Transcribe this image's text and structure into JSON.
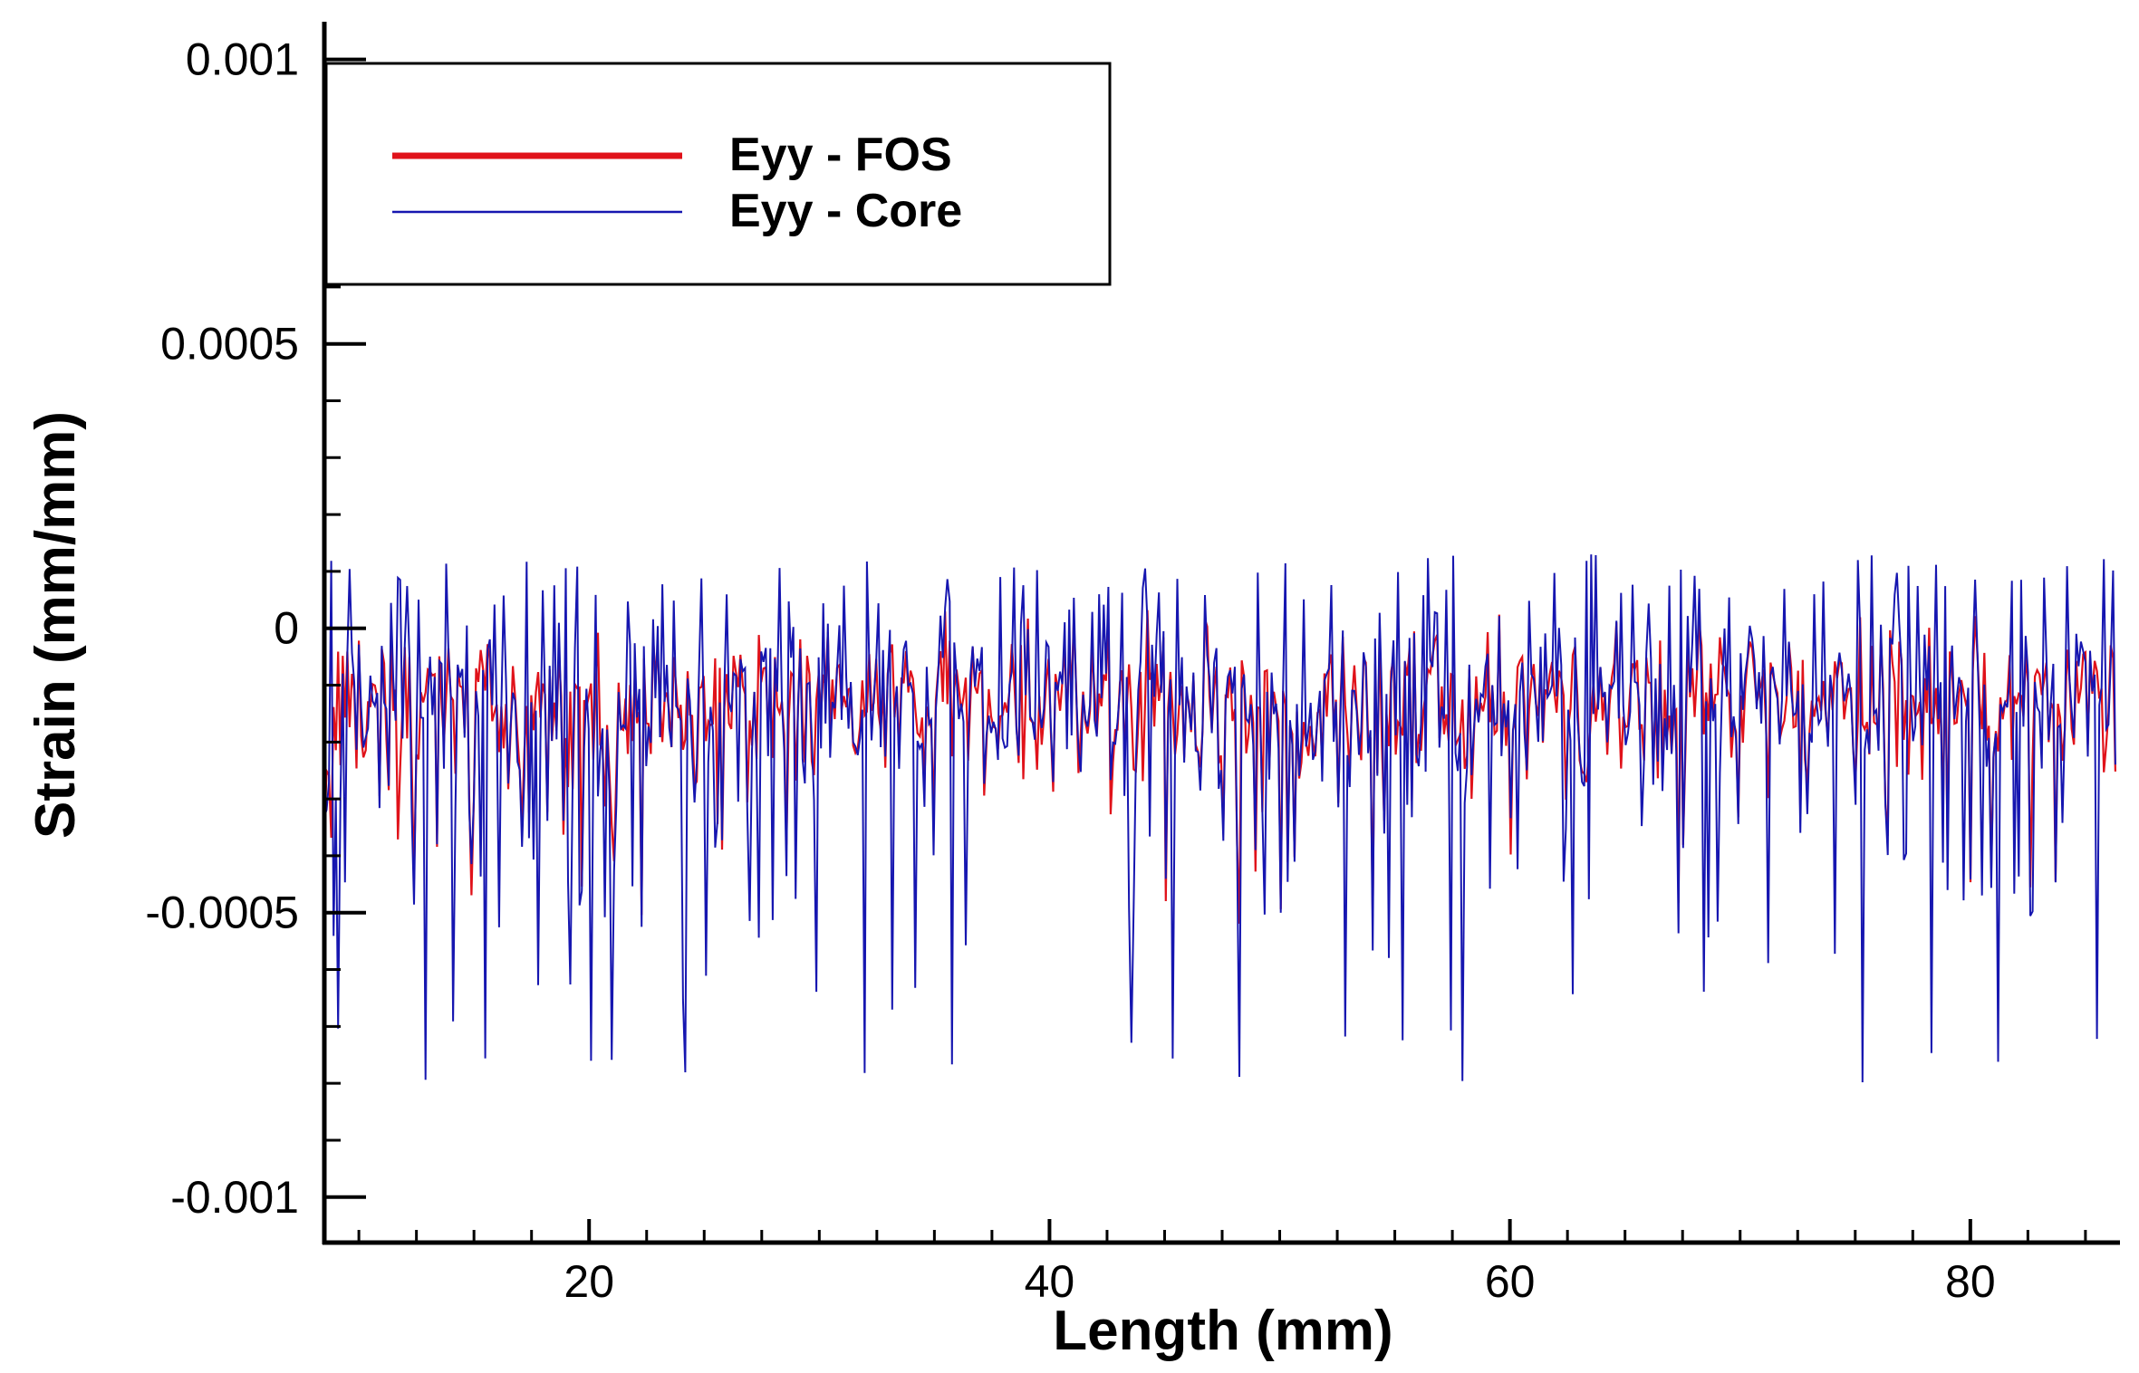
{
  "chart_data": {
    "type": "line",
    "xlabel": "Length (mm)",
    "ylabel": "Strain (mm/mm)",
    "xlim": [
      8.5,
      86.5
    ],
    "ylim": [
      -0.00108,
      0.00106
    ],
    "x_ticks": [
      20,
      40,
      60,
      80
    ],
    "x_tick_labels": [
      "20",
      "40",
      "60",
      "80"
    ],
    "y_ticks": [
      0.001,
      0.0005,
      0,
      -0.0005,
      -0.001
    ],
    "y_tick_labels": [
      "0.001",
      "0.0005",
      "0",
      "-0.0005",
      "-0.001"
    ],
    "legend_position": "top-left",
    "grid": false,
    "series": [
      {
        "name": "Eyy - FOS",
        "color": "#e0121a",
        "x_range": [
          8.5,
          86.3
        ],
        "points": 780,
        "mean": -0.00013,
        "min": -0.00052,
        "max": 8e-05
      },
      {
        "name": "Eyy - Core",
        "color": "#1616b0",
        "x_range": [
          8.5,
          86.3
        ],
        "points": 780,
        "mean": -0.00013,
        "min": -0.0008,
        "max": 0.00013
      }
    ]
  }
}
